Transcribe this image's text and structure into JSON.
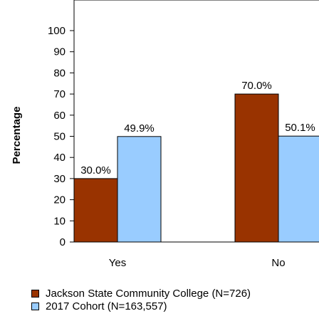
{
  "chart_data": {
    "type": "bar",
    "ylabel": "Percentage",
    "ylim": [
      0,
      100
    ],
    "yticks": [
      "0",
      "10",
      "20",
      "30",
      "40",
      "50",
      "60",
      "70",
      "80",
      "90",
      "100"
    ],
    "grid": false,
    "legend_placement": "bottom",
    "categories": [
      "Yes",
      "No"
    ],
    "series": [
      {
        "name": "Jackson State Community College (N=726)",
        "color": "#993300",
        "values": [
          30.0,
          70.0
        ],
        "labels": [
          "30.0%",
          "70.0%"
        ]
      },
      {
        "name": "2017 Cohort (N=163,557)",
        "color": "#99ccff",
        "values": [
          49.9,
          50.1
        ],
        "labels": [
          "49.9%",
          "50.1%"
        ]
      }
    ]
  }
}
